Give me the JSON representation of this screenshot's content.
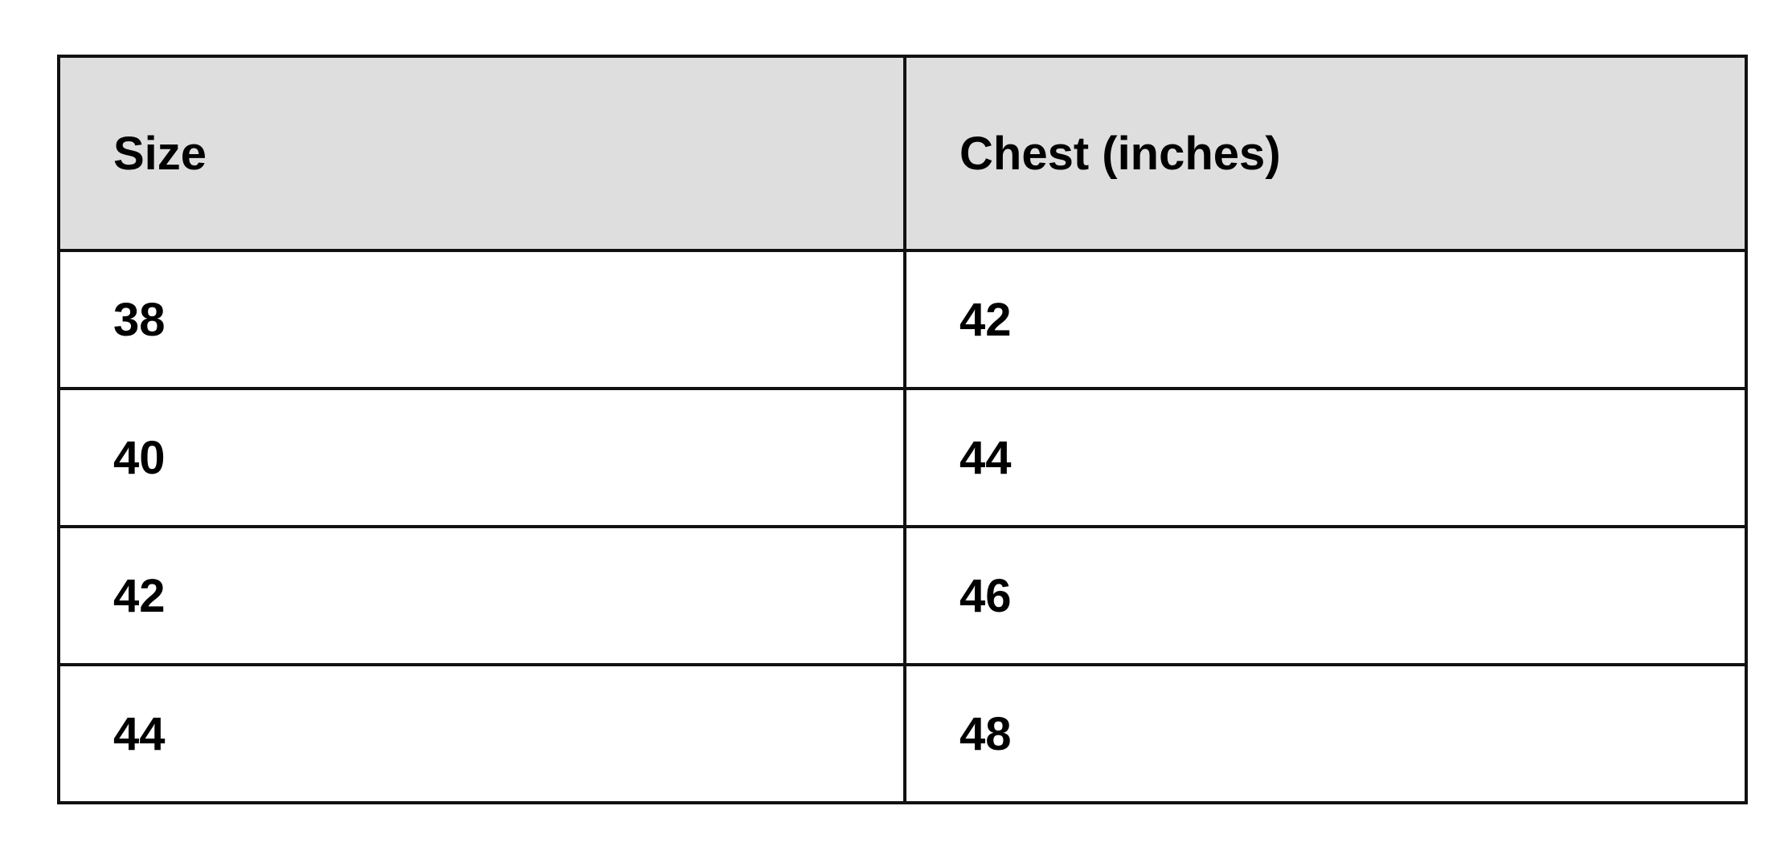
{
  "table": {
    "headers": [
      "Size",
      "Chest (inches)"
    ],
    "rows": [
      [
        "38",
        "42"
      ],
      [
        "40",
        "44"
      ],
      [
        "42",
        "46"
      ],
      [
        "44",
        "48"
      ]
    ],
    "header_background": "#dedede"
  }
}
